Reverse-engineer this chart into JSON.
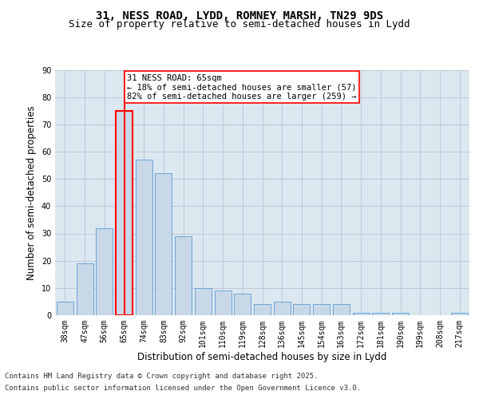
{
  "title": "31, NESS ROAD, LYDD, ROMNEY MARSH, TN29 9DS",
  "subtitle": "Size of property relative to semi-detached houses in Lydd",
  "xlabel": "Distribution of semi-detached houses by size in Lydd",
  "ylabel": "Number of semi-detached properties",
  "categories": [
    "38sqm",
    "47sqm",
    "56sqm",
    "65sqm",
    "74sqm",
    "83sqm",
    "92sqm",
    "101sqm",
    "110sqm",
    "119sqm",
    "128sqm",
    "136sqm",
    "145sqm",
    "154sqm",
    "163sqm",
    "172sqm",
    "181sqm",
    "190sqm",
    "199sqm",
    "208sqm",
    "217sqm"
  ],
  "values": [
    5,
    19,
    32,
    75,
    57,
    52,
    29,
    10,
    9,
    8,
    4,
    5,
    4,
    4,
    4,
    1,
    1,
    1,
    0,
    0,
    1
  ],
  "bar_color": "#c8d8e8",
  "bar_edge_color": "#5b9bd5",
  "highlight_bar_index": 3,
  "highlight_edge_color": "#ff0000",
  "vline_color": "#ff0000",
  "annotation_text": "31 NESS ROAD: 65sqm\n← 18% of semi-detached houses are smaller (57)\n82% of semi-detached houses are larger (259) →",
  "ylim": [
    0,
    90
  ],
  "yticks": [
    0,
    10,
    20,
    30,
    40,
    50,
    60,
    70,
    80,
    90
  ],
  "grid_color": "#c0c8d8",
  "bg_color": "#dce8f0",
  "footer_line1": "Contains HM Land Registry data © Crown copyright and database right 2025.",
  "footer_line2": "Contains public sector information licensed under the Open Government Licence v3.0.",
  "title_fontsize": 10,
  "subtitle_fontsize": 9,
  "label_fontsize": 8.5,
  "tick_fontsize": 7,
  "annotation_fontsize": 7.5,
  "footer_fontsize": 6.5
}
